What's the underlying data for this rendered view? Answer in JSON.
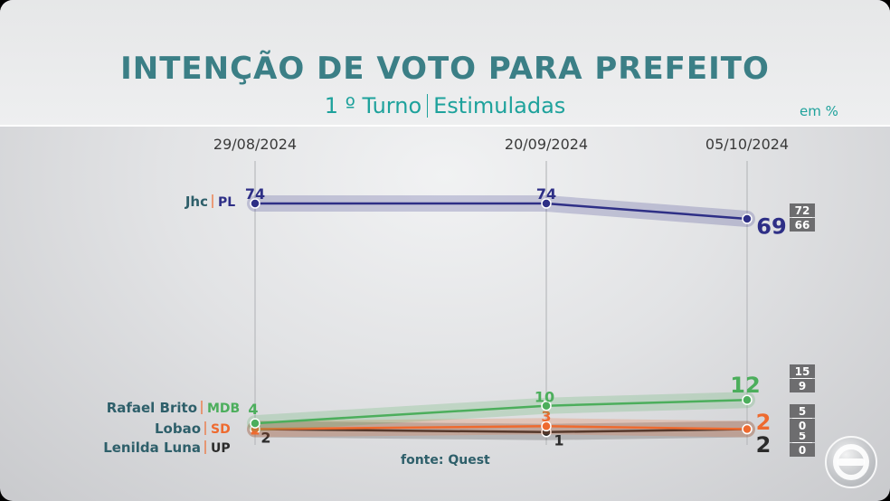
{
  "title": "INTENÇÃO DE VOTO PARA PREFEITO",
  "subtitle": {
    "round": "1 º Turno",
    "type": "Estimuladas"
  },
  "unit": "em %",
  "source": "fonte: Quest",
  "colors": {
    "teal": "#3b7f86",
    "subtitle": "#1ea29c"
  },
  "chart_data": {
    "type": "line",
    "x": [
      "29/08/2024",
      "20/09/2024",
      "05/10/2024"
    ],
    "series": [
      {
        "name": "Jhc",
        "party": "PL",
        "color": "#2e2f86",
        "values": [
          74,
          74,
          69
        ],
        "range_last": [
          "72",
          "66"
        ]
      },
      {
        "name": "Rafael Brito",
        "party": "MDB",
        "color": "#4cae5c",
        "values": [
          4,
          10,
          12
        ],
        "range_last": [
          "15",
          "9"
        ]
      },
      {
        "name": "Lobao",
        "party": "SD",
        "color": "#ee6a2f",
        "values": [
          2,
          3,
          2
        ],
        "range_last": [
          "5",
          "0"
        ]
      },
      {
        "name": "Lenilda Luna",
        "party": "UP",
        "color": "#2b2b2b",
        "values": [
          2,
          1,
          2
        ],
        "range_last": [
          "5",
          "0"
        ]
      }
    ]
  }
}
